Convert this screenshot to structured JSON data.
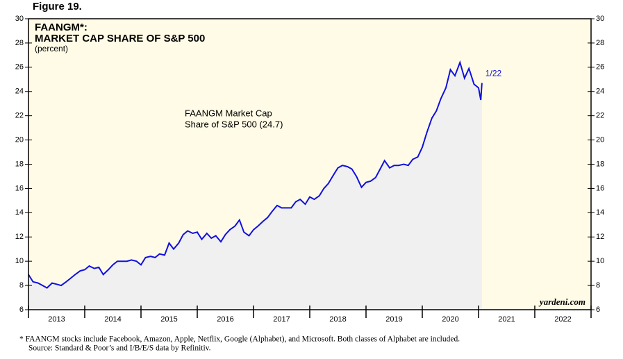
{
  "figure_label": "Figure 19.",
  "chart_data": {
    "type": "line",
    "title": [
      "FAANGM*:",
      "MARKET CAP SHARE OF S&P 500"
    ],
    "subtitle": "(percent)",
    "annotation": [
      "FAANGM Market Cap",
      "Share of S&P 500 (24.7)"
    ],
    "end_label": "1/22",
    "watermark": "yardeni.com",
    "x": [
      2013.0,
      2013.08,
      2013.17,
      2013.25,
      2013.33,
      2013.42,
      2013.5,
      2013.58,
      2013.67,
      2013.75,
      2013.83,
      2013.92,
      2014.0,
      2014.08,
      2014.17,
      2014.25,
      2014.33,
      2014.42,
      2014.5,
      2014.58,
      2014.67,
      2014.75,
      2014.83,
      2014.92,
      2015.0,
      2015.08,
      2015.17,
      2015.25,
      2015.33,
      2015.42,
      2015.5,
      2015.58,
      2015.67,
      2015.75,
      2015.83,
      2015.92,
      2016.0,
      2016.08,
      2016.17,
      2016.25,
      2016.33,
      2016.42,
      2016.5,
      2016.58,
      2016.67,
      2016.75,
      2016.83,
      2016.92,
      2017.0,
      2017.08,
      2017.17,
      2017.25,
      2017.33,
      2017.42,
      2017.5,
      2017.58,
      2017.67,
      2017.75,
      2017.83,
      2017.92,
      2018.0,
      2018.08,
      2018.17,
      2018.25,
      2018.33,
      2018.42,
      2018.5,
      2018.58,
      2018.67,
      2018.75,
      2018.83,
      2018.92,
      2019.0,
      2019.08,
      2019.17,
      2019.25,
      2019.33,
      2019.42,
      2019.5,
      2019.58,
      2019.67,
      2019.75,
      2019.83,
      2019.92,
      2020.0,
      2020.08,
      2020.17,
      2020.25,
      2020.33,
      2020.42,
      2020.5,
      2020.58,
      2020.67,
      2020.75,
      2020.83,
      2020.92,
      2021.0,
      2021.04,
      2021.06
    ],
    "series": [
      {
        "name": "FAANGM Market Cap Share of S&P 500",
        "color": "#1010e0",
        "values": [
          8.9,
          8.3,
          8.2,
          8.0,
          7.8,
          8.2,
          8.1,
          8.0,
          8.3,
          8.6,
          8.9,
          9.2,
          9.3,
          9.6,
          9.4,
          9.5,
          8.9,
          9.3,
          9.7,
          10.0,
          10.0,
          10.0,
          10.1,
          10.0,
          9.7,
          10.3,
          10.4,
          10.3,
          10.6,
          10.5,
          11.5,
          11.0,
          11.5,
          12.2,
          12.5,
          12.3,
          12.4,
          11.8,
          12.3,
          11.9,
          12.1,
          11.6,
          12.2,
          12.6,
          12.9,
          13.4,
          12.4,
          12.1,
          12.6,
          12.9,
          13.3,
          13.6,
          14.1,
          14.6,
          14.4,
          14.4,
          14.4,
          14.9,
          15.1,
          14.7,
          15.3,
          15.1,
          15.4,
          16.0,
          16.4,
          17.1,
          17.7,
          17.9,
          17.8,
          17.6,
          17.0,
          16.1,
          16.5,
          16.6,
          16.9,
          17.6,
          18.3,
          17.7,
          17.9,
          17.9,
          18.0,
          17.9,
          18.4,
          18.6,
          19.4,
          20.6,
          21.8,
          22.4,
          23.4,
          24.3,
          25.8,
          25.3,
          26.4,
          25.1,
          25.9,
          24.6,
          24.3,
          23.3,
          24.7
        ]
      }
    ],
    "xlim": [
      2013,
      2023
    ],
    "xticks": [
      {
        "value": 2013,
        "label": "2013"
      },
      {
        "value": 2014,
        "label": "2014"
      },
      {
        "value": 2015,
        "label": "2015"
      },
      {
        "value": 2016,
        "label": "2016"
      },
      {
        "value": 2017,
        "label": "2017"
      },
      {
        "value": 2018,
        "label": "2018"
      },
      {
        "value": 2019,
        "label": "2019"
      },
      {
        "value": 2020,
        "label": "2020"
      },
      {
        "value": 2021,
        "label": "2021"
      },
      {
        "value": 2022,
        "label": "2022"
      }
    ],
    "ylim": [
      6,
      30
    ],
    "yticks": [
      6,
      8,
      10,
      12,
      14,
      16,
      18,
      20,
      22,
      24,
      26,
      28,
      30
    ],
    "background": "#fffbe6",
    "area_color": "#f0f0f0"
  },
  "footnote": [
    "*  FAANGM stocks include Facebook, Amazon, Apple, Netflix, Google (Alphabet), and Microsoft. Both classes of Alphabet are included.",
    "Source: Standard & Poor’s and I/B/E/S data by Refinitiv."
  ]
}
